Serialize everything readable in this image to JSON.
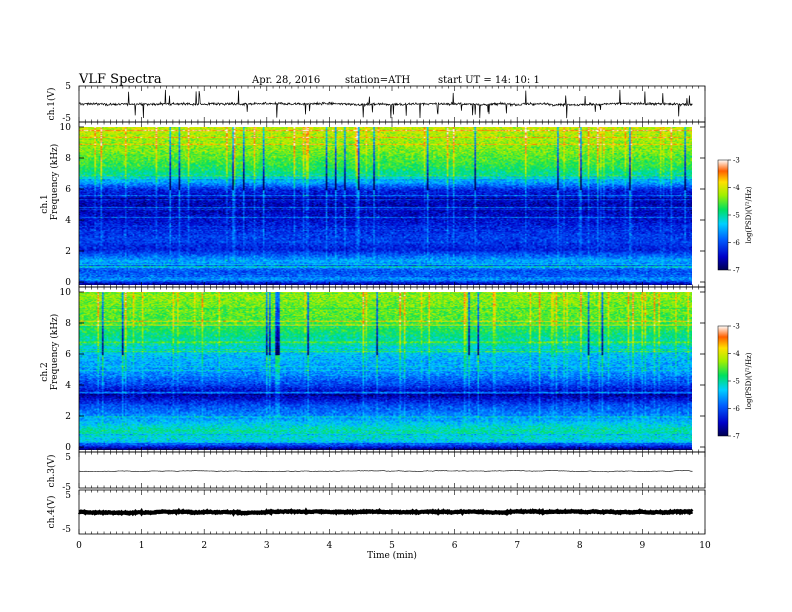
{
  "header": {
    "title": "VLF  Spectra",
    "date": "Apr. 28, 2016",
    "station": "station=ATH",
    "start": "start  UT  =    14: 10: 1"
  },
  "chart_data": [
    {
      "id": "ch1",
      "type": "line",
      "ylabel": "ch.1(V)",
      "ylim": [
        -5,
        5
      ],
      "yticks": [
        "5",
        "-5"
      ],
      "xlim": [
        0,
        10
      ],
      "xunit": "min",
      "length_min": 9.8,
      "baseline_V": 0,
      "noise_V": 1
    },
    {
      "id": "spec1",
      "type": "heatmap",
      "ylabel": "Frequency (kHz)",
      "channel_label": "ch.1",
      "ylim": [
        0,
        10
      ],
      "yticks": [
        "0",
        "2",
        "4",
        "6",
        "8",
        "10"
      ],
      "xlim": [
        0,
        10
      ],
      "length_min": 9.8,
      "colorbar": {
        "label": "log(PSD)(V²/Hz)",
        "ticks": [
          "-3",
          "-4",
          "-5",
          "-6",
          "-7"
        ],
        "min": -7,
        "max": -3
      },
      "profile": [
        {
          "f": 0.0,
          "v": -6.8
        },
        {
          "f": 0.3,
          "v": -5.6
        },
        {
          "f": 0.8,
          "v": -6.0
        },
        {
          "f": 1.5,
          "v": -5.5
        },
        {
          "f": 2.2,
          "v": -6.3
        },
        {
          "f": 3.0,
          "v": -6.1
        },
        {
          "f": 4.0,
          "v": -6.4
        },
        {
          "f": 5.0,
          "v": -6.6
        },
        {
          "f": 6.0,
          "v": -6.3
        },
        {
          "f": 6.8,
          "v": -5.1
        },
        {
          "f": 7.5,
          "v": -4.7
        },
        {
          "f": 8.5,
          "v": -4.4
        },
        {
          "f": 10.0,
          "v": -4.1
        }
      ]
    },
    {
      "id": "spec2",
      "type": "heatmap",
      "ylabel": "Frequency (kHz)",
      "channel_label": "ch.2",
      "ylim": [
        0,
        10
      ],
      "yticks": [
        "0",
        "2",
        "4",
        "6",
        "8",
        "10"
      ],
      "xlim": [
        0,
        10
      ],
      "length_min": 9.8,
      "colorbar": {
        "label": "log(PSD)(V²/Hz)",
        "ticks": [
          "-3",
          "-4",
          "-5",
          "-6",
          "-7"
        ],
        "min": -7,
        "max": -3
      },
      "profile": [
        {
          "f": 0.0,
          "v": -6.9
        },
        {
          "f": 0.5,
          "v": -5.3
        },
        {
          "f": 1.2,
          "v": -5.0
        },
        {
          "f": 2.0,
          "v": -5.6
        },
        {
          "f": 2.8,
          "v": -6.0
        },
        {
          "f": 3.5,
          "v": -6.7
        },
        {
          "f": 4.2,
          "v": -6.0
        },
        {
          "f": 5.0,
          "v": -5.6
        },
        {
          "f": 6.0,
          "v": -5.4
        },
        {
          "f": 7.0,
          "v": -5.0
        },
        {
          "f": 8.0,
          "v": -4.6
        },
        {
          "f": 10.0,
          "v": -4.3
        }
      ]
    },
    {
      "id": "ch3",
      "type": "line",
      "ylabel": "ch.3(V)",
      "ylim": [
        -5,
        5
      ],
      "yticks": [
        "5",
        "-5"
      ],
      "xlim": [
        0,
        10
      ],
      "length_min": 9.8,
      "baseline_V": 0,
      "noise_V": 0.05
    },
    {
      "id": "ch4",
      "type": "line",
      "ylabel": "ch.4(V)",
      "ylim": [
        -5,
        5
      ],
      "yticks": [
        "5",
        "-5"
      ],
      "xlim": [
        0,
        10
      ],
      "xlabel": "Time  (min)",
      "xticks": [
        "0",
        "1",
        "2",
        "3",
        "4",
        "5",
        "6",
        "7",
        "8",
        "9",
        "10"
      ],
      "length_min": 9.8,
      "baseline_V": 0,
      "noise_V": 0.3
    }
  ]
}
